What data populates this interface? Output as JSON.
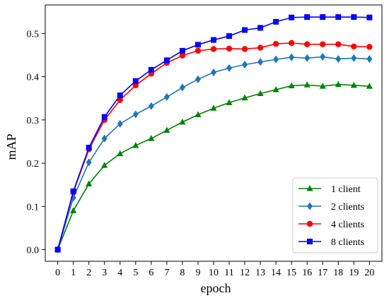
{
  "chart_data": {
    "type": "line",
    "xlabel": "epoch",
    "ylabel": "mAP",
    "x": [
      0,
      1,
      2,
      3,
      4,
      5,
      6,
      7,
      8,
      9,
      10,
      11,
      12,
      13,
      14,
      15,
      16,
      17,
      18,
      19,
      20
    ],
    "xlim": [
      -0.8,
      20.8
    ],
    "ylim": [
      -0.027,
      0.566
    ],
    "xticks": [
      "0",
      "1",
      "2",
      "3",
      "4",
      "5",
      "6",
      "7",
      "8",
      "9",
      "10",
      "11",
      "12",
      "13",
      "14",
      "15",
      "16",
      "17",
      "18",
      "19",
      "20"
    ],
    "yticks": [
      "0.0",
      "0.1",
      "0.2",
      "0.3",
      "0.4",
      "0.5"
    ],
    "grid": false,
    "legend_position": "lower-right",
    "series": [
      {
        "name": "1 client",
        "color": "#008000",
        "marker": "triangle-up",
        "values": [
          0.0,
          0.09,
          0.152,
          0.195,
          0.222,
          0.241,
          0.257,
          0.276,
          0.295,
          0.312,
          0.327,
          0.34,
          0.351,
          0.361,
          0.37,
          0.379,
          0.381,
          0.378,
          0.382,
          0.38,
          0.378
        ]
      },
      {
        "name": "2 clients",
        "color": "#1f77b4",
        "marker": "diamond",
        "values": [
          0.0,
          0.12,
          0.202,
          0.257,
          0.291,
          0.313,
          0.332,
          0.353,
          0.375,
          0.394,
          0.41,
          0.42,
          0.428,
          0.434,
          0.44,
          0.445,
          0.443,
          0.446,
          0.441,
          0.443,
          0.441
        ]
      },
      {
        "name": "4 clients",
        "color": "#ff0000",
        "marker": "circle",
        "values": [
          0.0,
          0.133,
          0.232,
          0.3,
          0.346,
          0.38,
          0.407,
          0.432,
          0.449,
          0.46,
          0.464,
          0.465,
          0.464,
          0.467,
          0.476,
          0.478,
          0.475,
          0.475,
          0.475,
          0.47,
          0.469
        ]
      },
      {
        "name": "8 clients",
        "color": "#0000ff",
        "marker": "square",
        "values": [
          0.0,
          0.135,
          0.236,
          0.307,
          0.357,
          0.39,
          0.416,
          0.438,
          0.46,
          0.474,
          0.485,
          0.494,
          0.508,
          0.513,
          0.527,
          0.537,
          0.538,
          0.538,
          0.538,
          0.538,
          0.537
        ]
      }
    ]
  }
}
